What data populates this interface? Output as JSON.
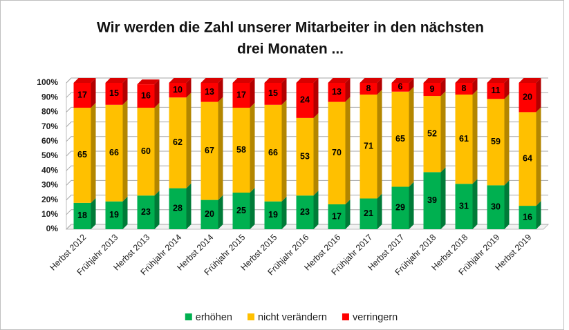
{
  "chart_data": {
    "type": "stacked_bar",
    "title": [
      "Wir werden die Zahl unserer Mitarbeiter in den nächsten",
      "drei Monaten ..."
    ],
    "categories": [
      "Herbst 2012",
      "Frühjahr 2013",
      "Herbst 2013",
      "Frühjahr 2014",
      "Herbst 2014",
      "Frühjahr 2015",
      "Herbst 2015",
      "Frühjahr 2016",
      "Herbst 2016",
      "Frühjahr 2017",
      "Herbst 2017",
      "Frühjahr 2018",
      "Herbst 2018",
      "Frühjahr 2019",
      "Herbst 2019"
    ],
    "series": [
      {
        "name": "erhöhen",
        "color": "#00b050",
        "values": [
          18,
          19,
          23,
          28,
          20,
          25,
          19,
          23,
          17,
          21,
          29,
          39,
          31,
          30,
          16
        ]
      },
      {
        "name": "nicht verändern",
        "color": "#ffc000",
        "values": [
          65,
          66,
          60,
          62,
          67,
          58,
          66,
          53,
          70,
          71,
          65,
          52,
          61,
          59,
          64
        ]
      },
      {
        "name": "verringern",
        "color": "#ff0000",
        "values": [
          17,
          15,
          16,
          10,
          13,
          17,
          15,
          24,
          13,
          8,
          6,
          9,
          8,
          11,
          20
        ]
      }
    ],
    "ylim": [
      0,
      100
    ],
    "yticks": [
      {
        "value": 0,
        "label": "0%"
      },
      {
        "value": 10,
        "label": "10%"
      },
      {
        "value": 20,
        "label": "20%"
      },
      {
        "value": 30,
        "label": "30%"
      },
      {
        "value": 40,
        "label": "40%"
      },
      {
        "value": 50,
        "label": "50%"
      },
      {
        "value": 60,
        "label": "60%"
      },
      {
        "value": 70,
        "label": "70%"
      },
      {
        "value": 80,
        "label": "80%"
      },
      {
        "value": 90,
        "label": "90%"
      },
      {
        "value": 100,
        "label": "100%"
      }
    ],
    "grid": true,
    "legend": "bottom"
  }
}
